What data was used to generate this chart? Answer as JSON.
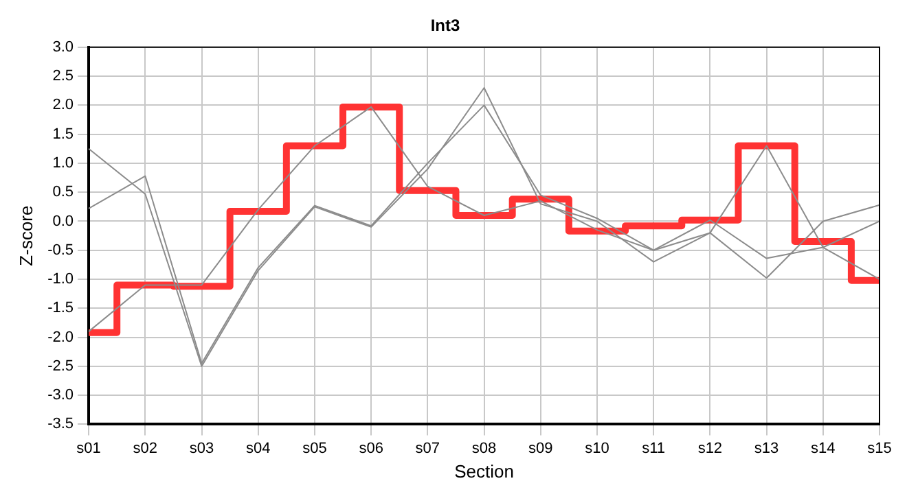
{
  "chart_data": {
    "type": "line",
    "title": "Int3",
    "xlabel": "Section",
    "ylabel": "Z-score",
    "categories": [
      "s01",
      "s02",
      "s03",
      "s04",
      "s05",
      "s06",
      "s07",
      "s08",
      "s09",
      "s10",
      "s11",
      "s12",
      "s13",
      "s14",
      "s15"
    ],
    "series": [
      {
        "color": "#8c8c8c",
        "values": [
          1.25,
          0.47,
          -2.5,
          -0.85,
          0.25,
          -0.1,
          0.9,
          2.3,
          0.3,
          0.0,
          -0.7,
          -0.2,
          1.3,
          -0.45,
          -1.0
        ]
      },
      {
        "color": "#8c8c8c",
        "values": [
          0.22,
          0.78,
          -2.45,
          -0.8,
          0.27,
          -0.08,
          1.0,
          2.0,
          0.45,
          0.05,
          -0.5,
          -0.2,
          -0.98,
          0.0,
          0.28
        ]
      },
      {
        "color": "#8c8c8c",
        "values": [
          -1.9,
          -1.1,
          -1.1,
          0.2,
          1.3,
          1.97,
          0.6,
          0.1,
          0.35,
          -0.15,
          -0.5,
          0.02,
          -0.64,
          -0.45,
          0.0
        ]
      },
      {
        "type": "step",
        "color": "#ff3333",
        "values": [
          -1.92,
          -1.1,
          -1.12,
          0.17,
          1.3,
          1.97,
          0.53,
          0.1,
          0.38,
          -0.17,
          -0.08,
          0.02,
          1.3,
          -0.35,
          -1.02
        ]
      }
    ],
    "ylim": [
      -3.5,
      3.0
    ],
    "yticks": [
      {
        "value": -3.5,
        "label": "-3.5"
      },
      {
        "value": -3.0,
        "label": "-3.0"
      },
      {
        "value": -2.5,
        "label": "-2.5"
      },
      {
        "value": -2.0,
        "label": "-2.0"
      },
      {
        "value": -1.5,
        "label": "-1.5"
      },
      {
        "value": -1.0,
        "label": "-1.0"
      },
      {
        "value": -0.5,
        "label": "-0.5"
      },
      {
        "value": 0,
        "label": "0.0"
      },
      {
        "value": 0.5,
        "label": "0.5"
      },
      {
        "value": 1.0,
        "label": "1.0"
      },
      {
        "value": 1.5,
        "label": "1.5"
      },
      {
        "value": 2.0,
        "label": "2.0"
      },
      {
        "value": 2.5,
        "label": "2.5"
      },
      {
        "value": 3.0,
        "label": "3.0"
      }
    ],
    "grid": true,
    "legend": false,
    "marker": "none"
  }
}
